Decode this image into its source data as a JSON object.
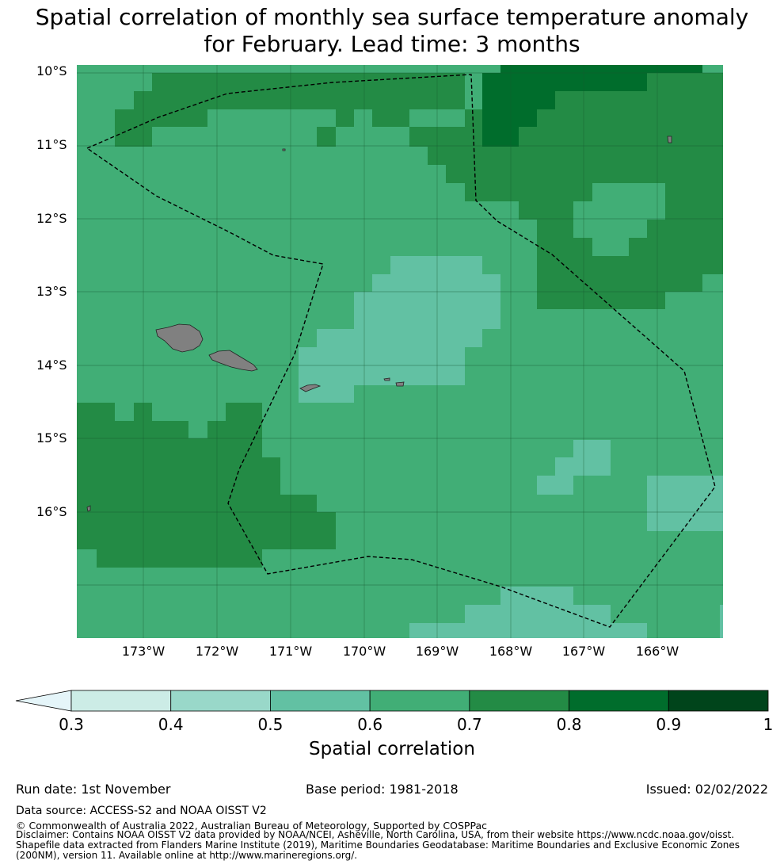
{
  "title": {
    "line1": "Spatial correlation of monthly sea surface temperature anomaly",
    "line2": "for February. Lead time: 3 months"
  },
  "map": {
    "lat_labels": [
      "10°S",
      "11°S",
      "12°S",
      "13°S",
      "14°S",
      "15°S",
      "16°S"
    ],
    "lon_labels": [
      "173°W",
      "172°W",
      "171°W",
      "170°W",
      "169°W",
      "168°W",
      "167°W",
      "166°W"
    ],
    "extent": {
      "lon_min": -173.9,
      "lon_max": -165.1,
      "lat_min": -17.8,
      "lat_max": -10.0
    },
    "grid_resolution_deg": 0.25,
    "land_color": "#808080",
    "eez_boundary_style": "dashed black",
    "dominant_correlation_class": "0.6-0.7"
  },
  "colorbar": {
    "ticks": [
      "0.3",
      "0.4",
      "0.5",
      "0.6",
      "0.7",
      "0.8",
      "0.9",
      "1"
    ],
    "bins": [
      {
        "range": [
          0.0,
          0.3
        ],
        "color": "#e5f5f9"
      },
      {
        "range": [
          0.3,
          0.4
        ],
        "color": "#ccece6"
      },
      {
        "range": [
          0.4,
          0.5
        ],
        "color": "#99d8c9"
      },
      {
        "range": [
          0.5,
          0.6
        ],
        "color": "#62c1a3"
      },
      {
        "range": [
          0.6,
          0.7
        ],
        "color": "#41ae76"
      },
      {
        "range": [
          0.7,
          0.8
        ],
        "color": "#238b45"
      },
      {
        "range": [
          0.8,
          0.9
        ],
        "color": "#006d2c"
      },
      {
        "range": [
          0.9,
          1.0
        ],
        "color": "#00441b"
      }
    ],
    "label": "Spatial correlation",
    "extend": "min"
  },
  "footer": {
    "run_date": "Run date: 1st November",
    "base_period": "Base period: 1981-2018",
    "issued": "Issued: 02/02/2022",
    "data_source": "Data source: ACCESS-S2 and NOAA OISST V2",
    "copyright": "© Commonwealth of Australia 2022, Australian Bureau of Meteorology, Supported by COSPPac",
    "disclaimer_1": "Disclaimer: Contains NOAA OISST V2 data provided by NOAA/NCEI, Asheville, North Carolina, USA, from their website https://www.ncdc.noaa.gov/oisst.",
    "disclaimer_2": "Shapefile data extracted from Flanders Marine Institute (2019), Maritime Boundaries Geodatabase: Maritime Boundaries and Exclusive Economic Zones",
    "disclaimer_3": "(200NM), version 11. Available online at http://www.marineregions.org/."
  }
}
